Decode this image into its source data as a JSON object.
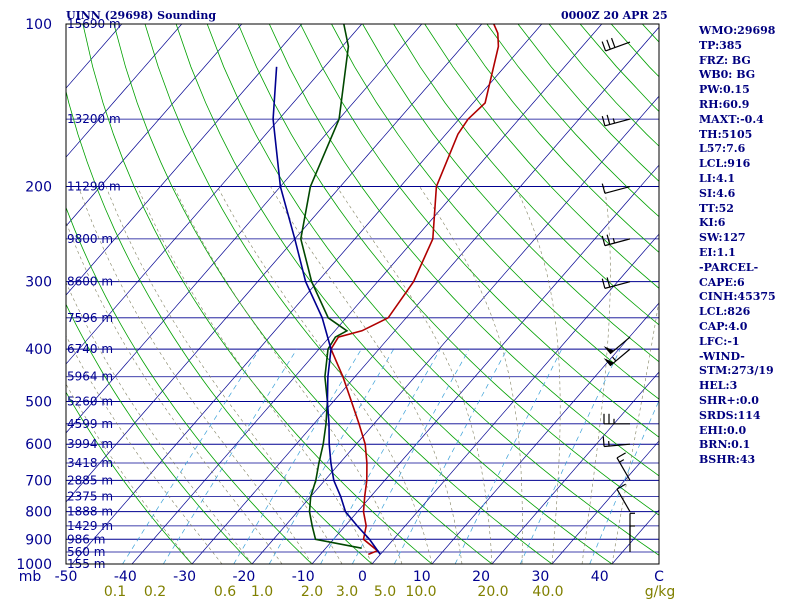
{
  "header": {
    "title": "UINN (29698) Sounding",
    "timestamp": "0000Z 20 APR 25"
  },
  "indices": [
    "WMO:29698",
    "TP:385",
    "FRZ: BG",
    "WB0: BG",
    "PW:0.15",
    "RH:60.9",
    "MAXT:-0.4",
    "TH:5105",
    "L57:7.6",
    "LCL:916",
    "LI:4.1",
    "SI:4.6",
    "TT:52",
    "KI:6",
    "SW:127",
    "EI:1.1",
    "-PARCEL-",
    "CAPE:6",
    "CINH:45375",
    "LCL:826",
    "CAP:4.0",
    "LFC:-1",
    "-WIND-",
    "STM:273/19",
    "HEL:3",
    "SHR+:0.0",
    "SRDS:114",
    "EHI:0.0",
    "BRN:0.1",
    "BSHR:43"
  ],
  "chart_data": {
    "type": "line",
    "title": "UINN (29698) Sounding",
    "xlabel": "C",
    "ylabel": "mb",
    "xlim": [
      -50,
      50
    ],
    "ylim": [
      1000,
      100
    ],
    "y_scale": "log",
    "x_ticks": [
      "-50",
      "-40",
      "-30",
      "-20",
      "-10",
      "0",
      "10",
      "20",
      "30",
      "40",
      "C"
    ],
    "pressure_ticks": [
      "100",
      "200",
      "300",
      "400",
      "500",
      "600",
      "700",
      "800",
      "900",
      "1000"
    ],
    "mixing_ratio_label": "g/kg",
    "mixing_ratio_ticks": [
      "0.1",
      "0.2",
      "0.6",
      "1.0",
      "2.0",
      "3.0",
      "5.0",
      "10.0",
      "20.0",
      "40.0"
    ],
    "height_labels": [
      {
        "p": 100,
        "label": "15690 m"
      },
      {
        "p": 150,
        "label": "13200 m"
      },
      {
        "p": 200,
        "label": "11290 m"
      },
      {
        "p": 250,
        "label": "9800 m"
      },
      {
        "p": 300,
        "label": "8600 m"
      },
      {
        "p": 350,
        "label": "7596 m"
      },
      {
        "p": 400,
        "label": "6740 m"
      },
      {
        "p": 450,
        "label": "5964 m"
      },
      {
        "p": 500,
        "label": "5260 m"
      },
      {
        "p": 550,
        "label": "4599 m"
      },
      {
        "p": 600,
        "label": "3994 m"
      },
      {
        "p": 650,
        "label": "3418 m"
      },
      {
        "p": 700,
        "label": "2885 m"
      },
      {
        "p": 750,
        "label": "2375 m"
      },
      {
        "p": 800,
        "label": "1888 m"
      },
      {
        "p": 850,
        "label": "1429 m"
      },
      {
        "p": 900,
        "label": "986 m"
      },
      {
        "p": 950,
        "label": "560 m"
      },
      {
        "p": 1000,
        "label": "155 m"
      }
    ],
    "series": [
      {
        "color": "#b00000",
        "points": [
          [
            960,
            -2.0
          ],
          [
            945,
            -1.0
          ],
          [
            900,
            -5.0
          ],
          [
            850,
            -6.5
          ],
          [
            800,
            -9.0
          ],
          [
            750,
            -11.0
          ],
          [
            700,
            -13.0
          ],
          [
            650,
            -15.5
          ],
          [
            600,
            -18.5
          ],
          [
            550,
            -22.5
          ],
          [
            500,
            -27.0
          ],
          [
            450,
            -32.0
          ],
          [
            400,
            -38.0
          ],
          [
            380,
            -38.5
          ],
          [
            370,
            -35.5
          ],
          [
            350,
            -33.0
          ],
          [
            300,
            -34.0
          ],
          [
            250,
            -37.0
          ],
          [
            200,
            -44.0
          ],
          [
            160,
            -48.0
          ],
          [
            150,
            -48.5
          ],
          [
            140,
            -48.0
          ],
          [
            110,
            -54.0
          ],
          [
            104,
            -56.0
          ],
          [
            100,
            -58.0
          ]
        ]
      },
      {
        "color": "#004800",
        "points": [
          [
            935,
            -4.0
          ],
          [
            900,
            -13.0
          ],
          [
            850,
            -15.5
          ],
          [
            800,
            -18.0
          ],
          [
            750,
            -20.0
          ],
          [
            700,
            -21.5
          ],
          [
            650,
            -23.5
          ],
          [
            600,
            -25.5
          ],
          [
            550,
            -28.0
          ],
          [
            500,
            -31.0
          ],
          [
            450,
            -35.0
          ],
          [
            400,
            -38.5
          ],
          [
            380,
            -39.0
          ],
          [
            370,
            -38.0
          ],
          [
            350,
            -43.0
          ],
          [
            300,
            -51.0
          ],
          [
            250,
            -59.0
          ],
          [
            200,
            -65.0
          ],
          [
            150,
            -70.0
          ],
          [
            110,
            -79.0
          ],
          [
            100,
            -83.0
          ]
        ]
      },
      {
        "color": "#000090",
        "points": [
          [
            960,
            0.0
          ],
          [
            900,
            -4.0
          ],
          [
            850,
            -8.0
          ],
          [
            800,
            -12.0
          ],
          [
            750,
            -15.0
          ],
          [
            700,
            -18.5
          ],
          [
            650,
            -21.5
          ],
          [
            600,
            -24.5
          ],
          [
            550,
            -27.5
          ],
          [
            500,
            -31.0
          ],
          [
            450,
            -34.5
          ],
          [
            400,
            -38.0
          ],
          [
            350,
            -44.0
          ],
          [
            300,
            -52.0
          ],
          [
            250,
            -60.0
          ],
          [
            200,
            -70.0
          ],
          [
            150,
            -81.0
          ],
          [
            120,
            -88.0
          ]
        ]
      }
    ],
    "wind_barbs": [
      {
        "p": 108,
        "dir": 250,
        "speed": 30
      },
      {
        "p": 150,
        "dir": 255,
        "speed": 25
      },
      {
        "p": 200,
        "dir": 255,
        "speed": 10
      },
      {
        "p": 250,
        "dir": 255,
        "speed": 25
      },
      {
        "p": 300,
        "dir": 255,
        "speed": 20
      },
      {
        "p": 380,
        "dir": 230,
        "speed": 50
      },
      {
        "p": 400,
        "dir": 230,
        "speed": 55
      },
      {
        "p": 550,
        "dir": 270,
        "speed": 25
      },
      {
        "p": 600,
        "dir": 265,
        "speed": 15
      },
      {
        "p": 700,
        "dir": 330,
        "speed": 15
      },
      {
        "p": 800,
        "dir": 330,
        "speed": 10
      },
      {
        "p": 900,
        "dir": 0,
        "speed": 5
      },
      {
        "p": 950,
        "dir": 0,
        "speed": 5
      }
    ],
    "grid": true
  }
}
